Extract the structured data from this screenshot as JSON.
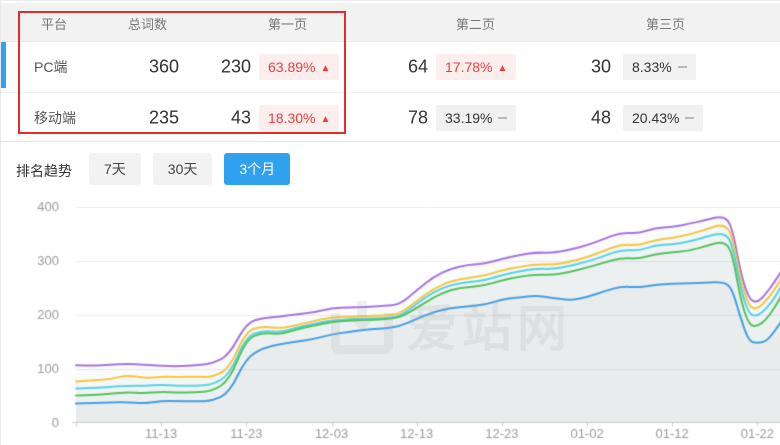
{
  "colors": {
    "accent_blue": "#2fa1ee",
    "up_red": "#f03d3d",
    "badge_pink_bg": "#fdeeee",
    "badge_gray_bg": "#f1f1f1"
  },
  "icons": {
    "up": "▲"
  },
  "table": {
    "headers": {
      "platform": "平台",
      "total": "总词数",
      "page1": "第一页",
      "page2": "第二页",
      "page3": "第三页"
    },
    "rows": [
      {
        "platform": "PC端",
        "total": "360",
        "page1_count": "230",
        "page1_pct": "63.89%",
        "page1_trend": "up",
        "page2_count": "64",
        "page2_pct": "17.78%",
        "page2_trend": "up",
        "page3_count": "30",
        "page3_pct": "8.33%",
        "page3_trend": "flat"
      },
      {
        "platform": "移动端",
        "total": "235",
        "page1_count": "43",
        "page1_pct": "18.30%",
        "page1_trend": "up",
        "page2_count": "78",
        "page2_pct": "33.19%",
        "page2_trend": "flat",
        "page3_count": "48",
        "page3_pct": "20.43%",
        "page3_trend": "flat"
      }
    ]
  },
  "trend": {
    "label": "排名趋势",
    "tabs": [
      "7天",
      "30天",
      "3个月"
    ],
    "active_tab": "3个月"
  },
  "watermark": {
    "text": "爱站网"
  },
  "chart_data": {
    "type": "line",
    "title": "排名趋势 3个月",
    "legend": "none",
    "grid": "horizontal",
    "y_axis": {
      "min": 0,
      "max": 400,
      "ticks": [
        0,
        100,
        200,
        300,
        400
      ]
    },
    "x_axis": {
      "tick_days": [
        10,
        20,
        30,
        40,
        50,
        60,
        70,
        80
      ],
      "tick_labels": [
        "11-13",
        "11-23",
        "12-03",
        "12-13",
        "12-23",
        "01-02",
        "01-12",
        "01-22"
      ],
      "start_day": 0,
      "end_day": 83
    },
    "days": [
      0,
      2,
      4,
      6,
      8,
      10,
      12,
      14,
      16,
      18,
      20,
      22,
      24,
      26,
      28,
      30,
      32,
      34,
      36,
      38,
      40,
      42,
      44,
      46,
      48,
      50,
      52,
      54,
      56,
      58,
      60,
      62,
      64,
      66,
      68,
      70,
      72,
      74,
      76,
      77,
      78,
      79,
      80,
      81,
      82,
      83
    ],
    "series": [
      {
        "name": "series-1-purple",
        "color": "#a873e0",
        "values": [
          106,
          105,
          107,
          109,
          107,
          105,
          104,
          106,
          109,
          125,
          185,
          194,
          196,
          201,
          204,
          212,
          213,
          214,
          216,
          218,
          245,
          270,
          285,
          292,
          294,
          303,
          310,
          315,
          314,
          320,
          328,
          340,
          352,
          350,
          360,
          362,
          368,
          375,
          383,
          365,
          280,
          228,
          222,
          238,
          260,
          284
        ]
      },
      {
        "name": "series-2-yellow",
        "color": "#f6c63f",
        "values": [
          76,
          78,
          80,
          88,
          82,
          85,
          84,
          85,
          84,
          100,
          170,
          178,
          174,
          181,
          188,
          195,
          196,
          197,
          198,
          201,
          225,
          248,
          262,
          268,
          272,
          282,
          288,
          293,
          292,
          298,
          306,
          318,
          330,
          328,
          338,
          342,
          348,
          358,
          368,
          350,
          265,
          214,
          210,
          225,
          246,
          270
        ]
      },
      {
        "name": "series-3-cyan",
        "color": "#55d3e8",
        "values": [
          63,
          64,
          66,
          68,
          68,
          70,
          68,
          68,
          70,
          88,
          160,
          170,
          167,
          176,
          183,
          189,
          191,
          192,
          193,
          196,
          220,
          242,
          255,
          260,
          263,
          273,
          280,
          285,
          284,
          290,
          298,
          308,
          320,
          318,
          328,
          330,
          335,
          344,
          352,
          335,
          250,
          200,
          197,
          210,
          230,
          258
        ]
      },
      {
        "name": "series-4-green",
        "color": "#55c25d",
        "values": [
          50,
          51,
          53,
          56,
          54,
          57,
          55,
          56,
          58,
          78,
          155,
          167,
          163,
          173,
          180,
          186,
          189,
          190,
          191,
          194,
          212,
          232,
          246,
          251,
          254,
          263,
          270,
          274,
          273,
          279,
          287,
          296,
          305,
          303,
          312,
          315,
          318,
          327,
          336,
          318,
          230,
          180,
          178,
          190,
          212,
          240
        ]
      },
      {
        "name": "series-5-blue",
        "color": "#449fe3",
        "values": [
          35,
          36,
          37,
          38,
          35,
          40,
          40,
          39,
          40,
          55,
          120,
          138,
          145,
          150,
          155,
          163,
          168,
          172,
          174,
          178,
          192,
          205,
          212,
          215,
          218,
          228,
          232,
          235,
          231,
          226,
          232,
          243,
          252,
          250,
          255,
          257,
          258,
          259,
          260,
          250,
          195,
          150,
          147,
          150,
          168,
          192
        ]
      }
    ]
  }
}
